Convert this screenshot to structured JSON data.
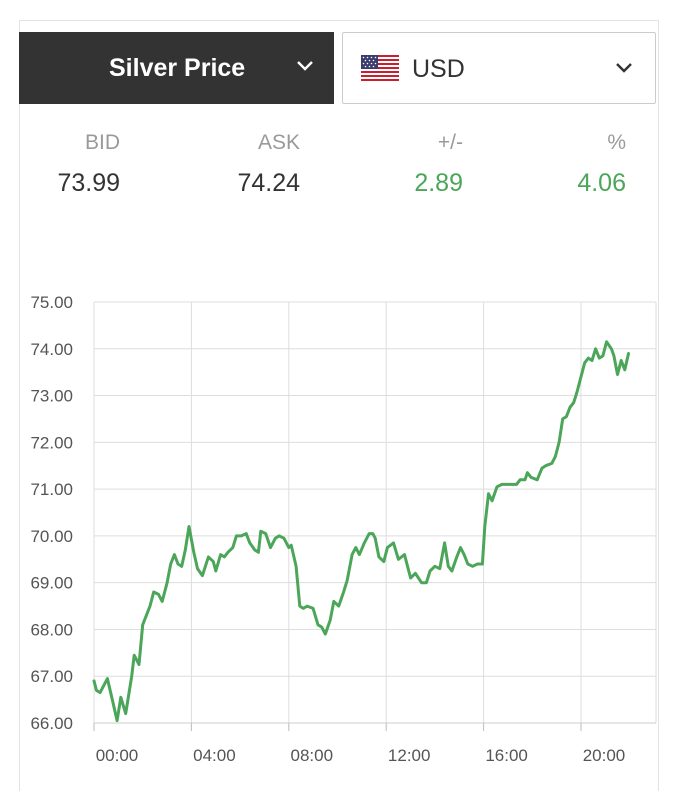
{
  "selector": {
    "metal_label": "Silver Price",
    "currency_label": "USD",
    "currency_flag": "us-flag-icon"
  },
  "quote": {
    "bid_label": "BID",
    "bid_value": "73.99",
    "ask_label": "ASK",
    "ask_value": "74.24",
    "change_label": "+/-",
    "change_value": "2.89",
    "percent_label": "%",
    "percent_value": "4.06"
  },
  "colors": {
    "positive": "#4ba65a",
    "line": "#4ba65a",
    "header_dark": "#333333",
    "grid": "#dddddd"
  },
  "chart_data": {
    "type": "line",
    "title": "",
    "xlabel": "",
    "ylabel": "",
    "ylim": [
      66.0,
      75.0
    ],
    "xlim": [
      0,
      22
    ],
    "grid": true,
    "legend": "none",
    "x_tick_labels": [
      "00:00",
      "04:00",
      "08:00",
      "12:00",
      "16:00",
      "20:00"
    ],
    "x_tick_values": [
      0,
      4,
      8,
      12,
      16,
      20
    ],
    "y_tick_labels": [
      "66.00",
      "67.00",
      "68.00",
      "69.00",
      "70.00",
      "71.00",
      "72.00",
      "73.00",
      "74.00",
      "75.00"
    ],
    "y_tick_values": [
      66,
      67,
      68,
      69,
      70,
      71,
      72,
      73,
      74,
      75
    ],
    "series": [
      {
        "color": "#4ba65a",
        "points": [
          [
            0.0,
            66.9
          ],
          [
            0.1,
            66.7
          ],
          [
            0.25,
            66.65
          ],
          [
            0.55,
            66.95
          ],
          [
            0.75,
            66.5
          ],
          [
            0.95,
            66.05
          ],
          [
            1.1,
            66.55
          ],
          [
            1.3,
            66.2
          ],
          [
            1.55,
            67.0
          ],
          [
            1.65,
            67.45
          ],
          [
            1.85,
            67.25
          ],
          [
            2.0,
            68.1
          ],
          [
            2.3,
            68.5
          ],
          [
            2.45,
            68.8
          ],
          [
            2.65,
            68.75
          ],
          [
            2.8,
            68.6
          ],
          [
            3.0,
            69.0
          ],
          [
            3.15,
            69.4
          ],
          [
            3.3,
            69.6
          ],
          [
            3.45,
            69.4
          ],
          [
            3.6,
            69.35
          ],
          [
            3.75,
            69.7
          ],
          [
            3.9,
            70.2
          ],
          [
            4.1,
            69.65
          ],
          [
            4.25,
            69.3
          ],
          [
            4.45,
            69.15
          ],
          [
            4.7,
            69.55
          ],
          [
            4.9,
            69.45
          ],
          [
            5.0,
            69.25
          ],
          [
            5.2,
            69.6
          ],
          [
            5.35,
            69.55
          ],
          [
            5.5,
            69.65
          ],
          [
            5.7,
            69.75
          ],
          [
            5.85,
            70.0
          ],
          [
            6.05,
            70.0
          ],
          [
            6.25,
            70.05
          ],
          [
            6.4,
            69.85
          ],
          [
            6.6,
            69.7
          ],
          [
            6.75,
            69.65
          ],
          [
            6.85,
            70.1
          ],
          [
            7.05,
            70.05
          ],
          [
            7.25,
            69.75
          ],
          [
            7.45,
            69.95
          ],
          [
            7.6,
            70.0
          ],
          [
            7.8,
            69.95
          ],
          [
            8.0,
            69.75
          ],
          [
            8.1,
            69.8
          ],
          [
            8.3,
            69.35
          ],
          [
            8.45,
            68.5
          ],
          [
            8.6,
            68.45
          ],
          [
            8.75,
            68.5
          ],
          [
            9.0,
            68.45
          ],
          [
            9.2,
            68.1
          ],
          [
            9.35,
            68.05
          ],
          [
            9.5,
            67.9
          ],
          [
            9.7,
            68.2
          ],
          [
            9.85,
            68.6
          ],
          [
            10.05,
            68.5
          ],
          [
            10.25,
            68.8
          ],
          [
            10.4,
            69.05
          ],
          [
            10.6,
            69.6
          ],
          [
            10.75,
            69.75
          ],
          [
            10.9,
            69.6
          ],
          [
            11.1,
            69.85
          ],
          [
            11.3,
            70.05
          ],
          [
            11.45,
            70.05
          ],
          [
            11.55,
            69.95
          ],
          [
            11.7,
            69.55
          ],
          [
            11.9,
            69.45
          ],
          [
            12.05,
            69.75
          ],
          [
            12.3,
            69.85
          ],
          [
            12.5,
            69.5
          ],
          [
            12.75,
            69.6
          ],
          [
            13.0,
            69.1
          ],
          [
            13.2,
            69.2
          ],
          [
            13.45,
            69.0
          ],
          [
            13.65,
            69.0
          ],
          [
            13.8,
            69.25
          ],
          [
            14.0,
            69.35
          ],
          [
            14.2,
            69.3
          ],
          [
            14.4,
            69.85
          ],
          [
            14.55,
            69.35
          ],
          [
            14.7,
            69.25
          ],
          [
            14.9,
            69.55
          ],
          [
            15.05,
            69.75
          ],
          [
            15.2,
            69.6
          ],
          [
            15.35,
            69.4
          ],
          [
            15.55,
            69.35
          ],
          [
            15.75,
            69.4
          ],
          [
            15.95,
            69.4
          ],
          [
            16.05,
            70.2
          ],
          [
            16.2,
            70.9
          ],
          [
            16.35,
            70.75
          ],
          [
            16.55,
            71.05
          ],
          [
            16.75,
            71.1
          ],
          [
            17.1,
            71.1
          ],
          [
            17.35,
            71.1
          ],
          [
            17.5,
            71.2
          ],
          [
            17.7,
            71.2
          ],
          [
            17.8,
            71.35
          ],
          [
            17.95,
            71.25
          ],
          [
            18.2,
            71.2
          ],
          [
            18.4,
            71.45
          ],
          [
            18.55,
            71.5
          ],
          [
            18.8,
            71.55
          ],
          [
            18.95,
            71.7
          ],
          [
            19.1,
            72.0
          ],
          [
            19.25,
            72.5
          ],
          [
            19.4,
            72.55
          ],
          [
            19.55,
            72.75
          ],
          [
            19.7,
            72.85
          ],
          [
            19.85,
            73.1
          ],
          [
            20.0,
            73.4
          ],
          [
            20.15,
            73.7
          ],
          [
            20.3,
            73.8
          ],
          [
            20.45,
            73.75
          ],
          [
            20.6,
            74.0
          ],
          [
            20.75,
            73.8
          ],
          [
            20.9,
            73.85
          ],
          [
            21.05,
            74.15
          ],
          [
            21.25,
            74.0
          ],
          [
            21.35,
            73.85
          ],
          [
            21.5,
            73.45
          ],
          [
            21.65,
            73.75
          ],
          [
            21.8,
            73.55
          ],
          [
            21.95,
            73.9
          ]
        ]
      }
    ]
  }
}
